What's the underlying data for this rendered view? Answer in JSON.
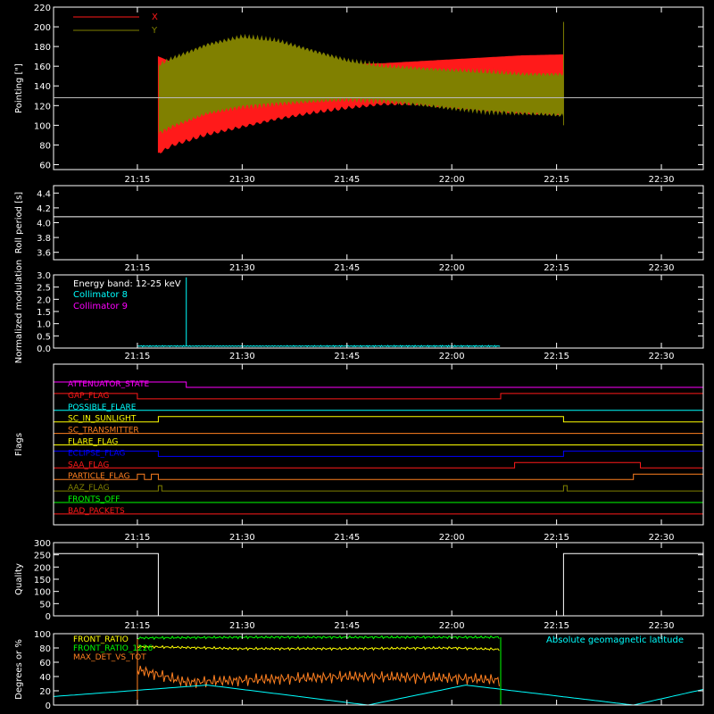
{
  "colors": {
    "frame": "#ffffff",
    "x": "#ff1a1a",
    "y": "#808000",
    "cyan": "#00ffff",
    "magenta": "#ff00ff",
    "red": "#ff1a1a",
    "orange": "#ff8020",
    "yellow": "#ffff00",
    "blue": "#0000ff",
    "green": "#00ff00",
    "olive": "#808000",
    "white": "#ffffff"
  },
  "time_ticks": [
    "21:15",
    "21:30",
    "21:45",
    "22:00",
    "22:15",
    "22:30"
  ],
  "time_tick_minutes": [
    1275,
    1290,
    1305,
    1320,
    1335,
    1350
  ],
  "time_range_minutes": [
    1263,
    1356
  ],
  "chart_data": [
    {
      "type": "line",
      "ylabel": "Pointing [\"]",
      "ylim": [
        55,
        220
      ],
      "yticks": [
        60,
        80,
        100,
        120,
        140,
        160,
        180,
        200,
        220
      ],
      "reference_y": 128,
      "legend": [
        "X",
        "Y"
      ],
      "series": [
        {
          "name": "X",
          "x": [
            "21:18",
            "21:20",
            "21:25",
            "21:30",
            "21:35",
            "21:40",
            "21:45",
            "21:50",
            "21:55",
            "22:00",
            "22:05",
            "22:10",
            "22:16"
          ],
          "upper": [
            170,
            164,
            163,
            162,
            161,
            161,
            162,
            163,
            165,
            167,
            169,
            171,
            172
          ],
          "lower": [
            74,
            82,
            93,
            101,
            109,
            115,
            120,
            124,
            124,
            121,
            118,
            115,
            114
          ]
        },
        {
          "name": "Y",
          "x": [
            "21:18",
            "21:20",
            "21:25",
            "21:30",
            "21:35",
            "21:40",
            "21:45",
            "21:50",
            "21:55",
            "22:00",
            "22:05",
            "22:10",
            "22:16"
          ],
          "upper": [
            165,
            172,
            186,
            194,
            190,
            180,
            170,
            164,
            162,
            160,
            158,
            156,
            156
          ],
          "lower": [
            88,
            95,
            108,
            115,
            118,
            120,
            122,
            121,
            117,
            113,
            110,
            108,
            106
          ]
        }
      ]
    },
    {
      "type": "line",
      "ylabel": "Roll period [s]",
      "ylim": [
        3.5,
        4.5
      ],
      "yticks": [
        3.6,
        3.8,
        4.0,
        4.2,
        4.4
      ],
      "series": [
        {
          "x": [
            "21:03",
            "22:36"
          ],
          "y": [
            4.08,
            4.08
          ]
        }
      ]
    },
    {
      "type": "line",
      "ylabel": "Normalized modulation",
      "ylim": [
        0,
        3
      ],
      "yticks": [
        0.0,
        0.5,
        1.0,
        1.5,
        2.0,
        2.5,
        3.0
      ],
      "legend": [
        "Energy band: 12-25 keV",
        "Collimator 8",
        "Collimator 9"
      ],
      "series": [
        {
          "name": "Collimator 8",
          "x": [
            "21:15",
            "21:22",
            "21:22",
            "21:22",
            "22:07"
          ],
          "y": [
            0.08,
            0.08,
            2.9,
            0.08,
            0.08
          ]
        },
        {
          "name": "Collimator 9",
          "x": [
            "21:03",
            "22:36"
          ],
          "y": [
            0.0,
            0.0
          ]
        }
      ]
    },
    {
      "type": "step",
      "ylabel": "Flags",
      "flags": [
        {
          "label": "ATTENUATOR_STATE",
          "color_key": "magenta",
          "changes": [
            [
              "21:03",
              1
            ],
            [
              "21:22",
              0
            ]
          ]
        },
        {
          "label": "GAP_FLAG",
          "color_key": "red",
          "changes": [
            [
              "21:03",
              1
            ],
            [
              "21:15",
              0
            ],
            [
              "22:07",
              1
            ]
          ]
        },
        {
          "label": "POSSIBLE_FLARE",
          "color_key": "cyan",
          "changes": [
            [
              "21:03",
              0
            ]
          ]
        },
        {
          "label": "SC_IN_SUNLIGHT",
          "color_key": "yellow",
          "changes": [
            [
              "21:03",
              0
            ],
            [
              "21:18",
              1
            ],
            [
              "22:16",
              0
            ]
          ]
        },
        {
          "label": "SC_TRANSMITTER",
          "color_key": "orange",
          "changes": [
            [
              "21:03",
              0
            ]
          ]
        },
        {
          "label": "FLARE_FLAG",
          "color_key": "yellow",
          "changes": [
            [
              "21:03",
              0
            ]
          ]
        },
        {
          "label": "ECLIPSE_FLAG",
          "color_key": "blue",
          "changes": [
            [
              "21:03",
              1
            ],
            [
              "21:18",
              0
            ],
            [
              "22:16",
              1
            ]
          ]
        },
        {
          "label": "SAA_FLAG",
          "color_key": "red",
          "changes": [
            [
              "21:03",
              0
            ],
            [
              "22:09",
              1
            ],
            [
              "22:27",
              0
            ]
          ]
        },
        {
          "label": "PARTICLE_FLAG",
          "color_key": "orange",
          "changes": [
            [
              "21:03",
              0
            ],
            [
              "21:15",
              1
            ],
            [
              "21:16",
              0
            ],
            [
              "21:17",
              1
            ],
            [
              "21:18",
              0
            ],
            [
              "22:26",
              1
            ]
          ]
        },
        {
          "label": "AAZ_FLAG",
          "color_key": "olive",
          "changes": [
            [
              "21:03",
              0
            ],
            [
              "21:18",
              1
            ],
            [
              "21:18.5",
              0
            ],
            [
              "22:16",
              1
            ],
            [
              "22:16.5",
              0
            ]
          ]
        },
        {
          "label": "FRONTS_OFF",
          "color_key": "green",
          "changes": [
            [
              "21:03",
              0
            ]
          ]
        },
        {
          "label": "BAD_PACKETS",
          "color_key": "red",
          "changes": [
            [
              "21:03",
              0
            ]
          ]
        }
      ]
    },
    {
      "type": "step",
      "ylabel": "Quality",
      "ylim": [
        0,
        300
      ],
      "yticks": [
        0,
        50,
        100,
        150,
        200,
        250,
        300
      ],
      "series": [
        {
          "x": [
            "21:03",
            "21:18",
            "21:18",
            "22:16",
            "22:16",
            "22:36"
          ],
          "y": [
            255,
            255,
            0,
            0,
            255,
            255
          ]
        }
      ]
    },
    {
      "type": "line",
      "ylabel": "Degrees or %",
      "ylim": [
        0,
        100
      ],
      "yticks": [
        0,
        20,
        40,
        60,
        80,
        100
      ],
      "legend": [
        "FRONT_RATIO",
        "FRONT_RATIO_1226",
        "MAX_DET_VS_TOT"
      ],
      "annotation": "Absolute geomagnetic latitude",
      "series": [
        {
          "name": "FRONT_RATIO",
          "x": [
            "21:15",
            "21:30",
            "21:45",
            "22:00",
            "22:07"
          ],
          "y": [
            82,
            79,
            79,
            80,
            78
          ]
        },
        {
          "name": "FRONT_RATIO_1226",
          "x": [
            "21:15",
            "21:30",
            "21:45",
            "22:00",
            "22:07"
          ],
          "y": [
            94,
            95,
            95,
            95,
            95
          ]
        },
        {
          "name": "MAX_DET_VS_TOT",
          "x": [
            "21:15",
            "21:22",
            "21:30",
            "21:45",
            "22:00",
            "22:07"
          ],
          "y": [
            50,
            32,
            35,
            40,
            38,
            35
          ]
        },
        {
          "name": "Absolute geomagnetic latitude",
          "x": [
            "21:03",
            "21:25",
            "21:48",
            "22:02",
            "22:26",
            "22:36"
          ],
          "y": [
            12,
            28,
            0,
            28,
            0,
            22
          ]
        }
      ]
    }
  ]
}
